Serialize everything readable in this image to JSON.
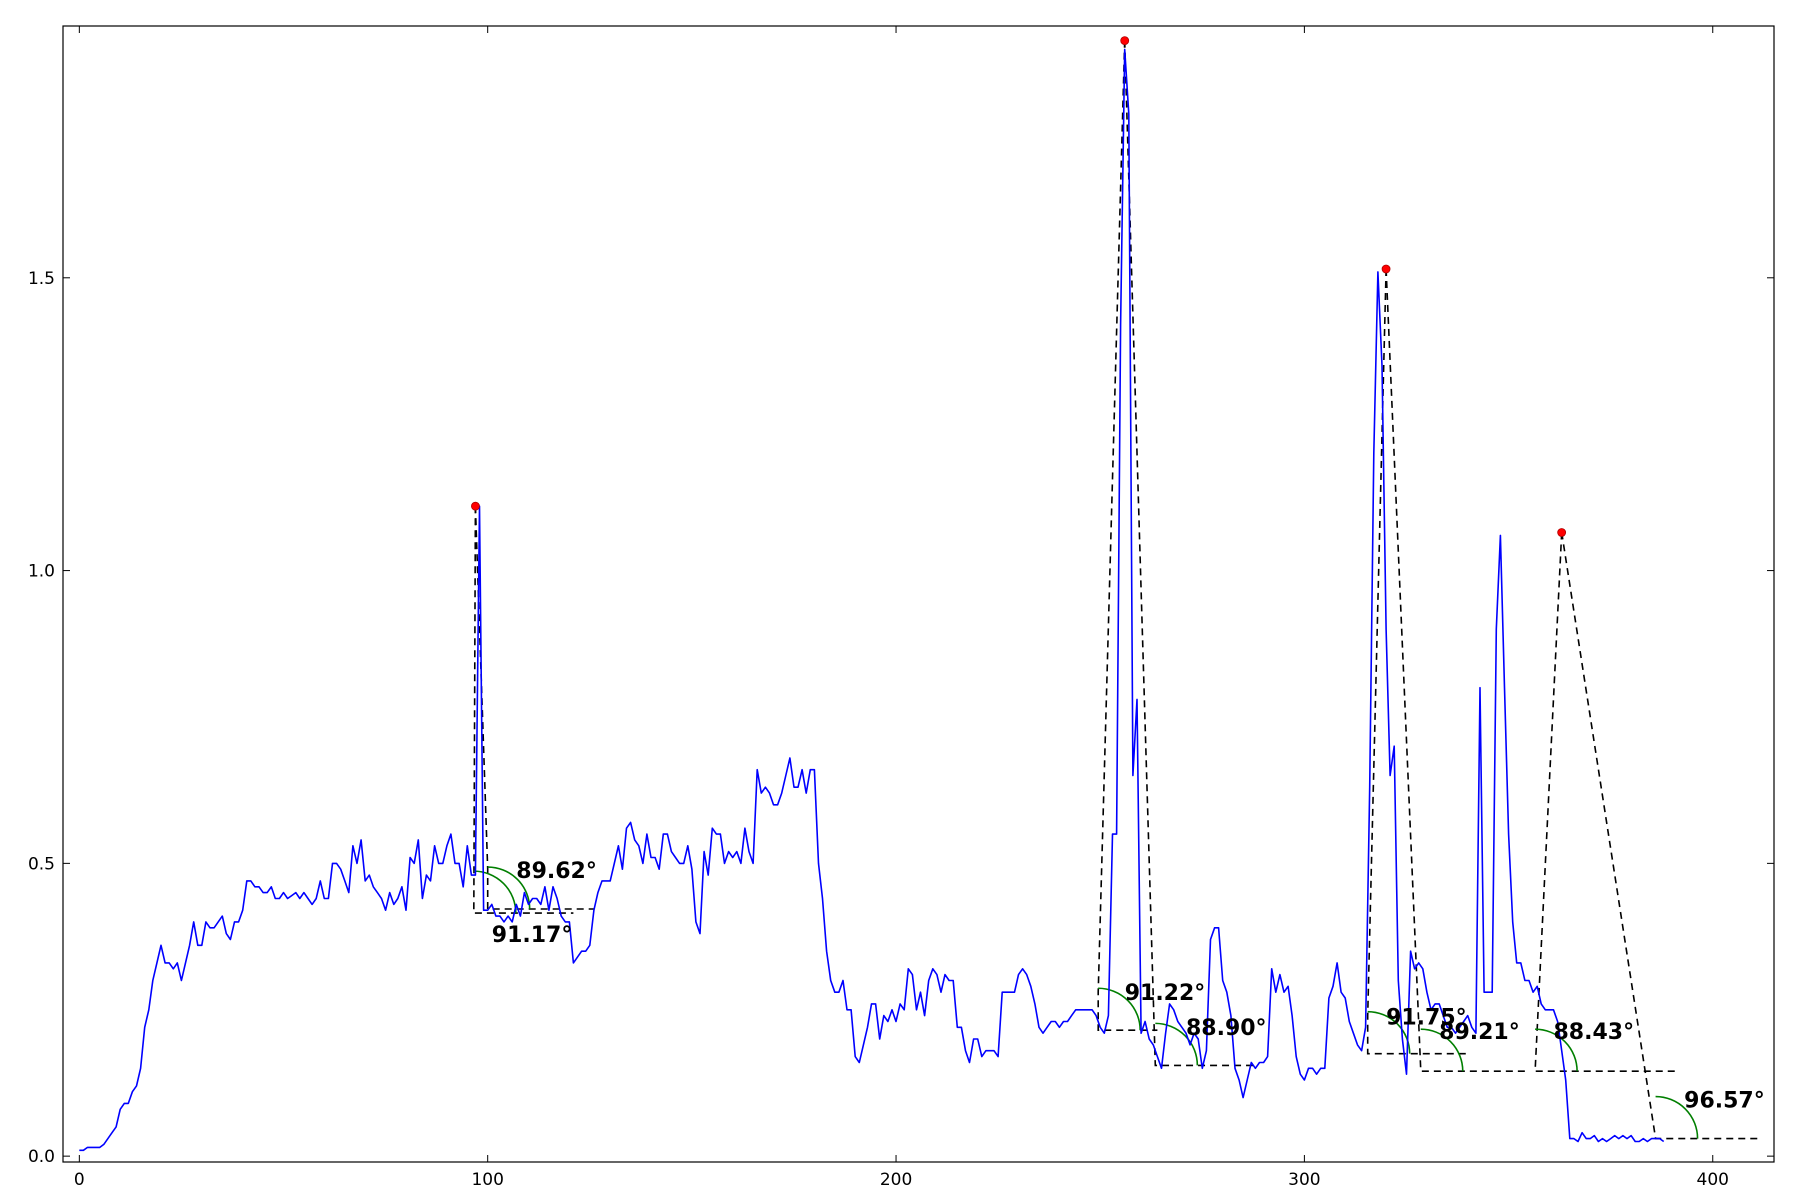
{
  "chart_data": {
    "type": "line",
    "title": "",
    "xlabel": "",
    "ylabel": "",
    "xlim": [
      -4,
      415
    ],
    "ylim": [
      -0.01,
      1.93
    ],
    "grid": false,
    "legend": "none",
    "x_ticks": [
      0,
      100,
      200,
      300,
      400
    ],
    "x_tick_labels": [
      "0",
      "100",
      "200",
      "300",
      "400"
    ],
    "y_ticks": [
      0.0,
      0.5,
      1.0,
      1.5
    ],
    "y_tick_labels": [
      "0.0",
      "0.5",
      "1.0",
      "1.5"
    ],
    "colors": {
      "series": "#0000ff",
      "peaks": "#ff0000",
      "guides": "#000000",
      "arcs": "#007f00"
    },
    "series": [
      {
        "values_note": "y values at x = 0,1,2,...",
        "x_start": 0,
        "x_step": 1,
        "y": [
          0.01,
          0.01,
          0.015,
          0.015,
          0.015,
          0.015,
          0.02,
          0.03,
          0.04,
          0.05,
          0.08,
          0.09,
          0.09,
          0.11,
          0.12,
          0.15,
          0.22,
          0.25,
          0.3,
          0.33,
          0.36,
          0.33,
          0.33,
          0.32,
          0.33,
          0.3,
          0.33,
          0.36,
          0.4,
          0.36,
          0.36,
          0.4,
          0.39,
          0.39,
          0.4,
          0.41,
          0.38,
          0.37,
          0.4,
          0.4,
          0.42,
          0.47,
          0.47,
          0.46,
          0.46,
          0.45,
          0.45,
          0.46,
          0.44,
          0.44,
          0.45,
          0.44,
          0.445,
          0.45,
          0.44,
          0.45,
          0.44,
          0.43,
          0.44,
          0.47,
          0.44,
          0.44,
          0.5,
          0.5,
          0.49,
          0.47,
          0.45,
          0.53,
          0.5,
          0.54,
          0.47,
          0.48,
          0.46,
          0.45,
          0.44,
          0.42,
          0.45,
          0.43,
          0.44,
          0.46,
          0.42,
          0.51,
          0.5,
          0.54,
          0.44,
          0.48,
          0.47,
          0.53,
          0.5,
          0.5,
          0.53,
          0.55,
          0.5,
          0.5,
          0.46,
          0.53,
          0.48,
          0.48,
          1.11,
          0.42,
          0.42,
          0.43,
          0.41,
          0.41,
          0.4,
          0.41,
          0.4,
          0.43,
          0.41,
          0.45,
          0.43,
          0.44,
          0.44,
          0.43,
          0.46,
          0.42,
          0.46,
          0.44,
          0.41,
          0.4,
          0.4,
          0.33,
          0.34,
          0.35,
          0.35,
          0.36,
          0.42,
          0.45,
          0.47,
          0.47,
          0.47,
          0.5,
          0.53,
          0.49,
          0.56,
          0.57,
          0.54,
          0.53,
          0.5,
          0.55,
          0.51,
          0.51,
          0.49,
          0.55,
          0.55,
          0.52,
          0.51,
          0.5,
          0.5,
          0.53,
          0.49,
          0.4,
          0.38,
          0.52,
          0.48,
          0.56,
          0.55,
          0.55,
          0.5,
          0.52,
          0.51,
          0.52,
          0.5,
          0.56,
          0.52,
          0.5,
          0.66,
          0.62,
          0.63,
          0.62,
          0.6,
          0.6,
          0.62,
          0.65,
          0.68,
          0.63,
          0.63,
          0.66,
          0.62,
          0.66,
          0.66,
          0.5,
          0.44,
          0.35,
          0.3,
          0.28,
          0.28,
          0.3,
          0.25,
          0.25,
          0.17,
          0.16,
          0.19,
          0.22,
          0.26,
          0.26,
          0.2,
          0.24,
          0.23,
          0.25,
          0.23,
          0.26,
          0.25,
          0.32,
          0.31,
          0.25,
          0.28,
          0.24,
          0.3,
          0.32,
          0.31,
          0.28,
          0.31,
          0.3,
          0.3,
          0.22,
          0.22,
          0.18,
          0.16,
          0.2,
          0.2,
          0.17,
          0.18,
          0.18,
          0.18,
          0.17,
          0.28,
          0.28,
          0.28,
          0.28,
          0.31,
          0.32,
          0.31,
          0.29,
          0.26,
          0.22,
          0.21,
          0.22,
          0.23,
          0.23,
          0.22,
          0.23,
          0.23,
          0.24,
          0.25,
          0.25,
          0.25,
          0.25,
          0.25,
          0.24,
          0.22,
          0.21,
          0.24,
          0.55,
          0.55,
          1.42,
          1.89,
          1.78,
          0.65,
          0.78,
          0.21,
          0.23,
          0.2,
          0.19,
          0.17,
          0.15,
          0.21,
          0.26,
          0.25,
          0.23,
          0.22,
          0.21,
          0.19,
          0.21,
          0.2,
          0.15,
          0.18,
          0.37,
          0.39,
          0.39,
          0.3,
          0.28,
          0.24,
          0.15,
          0.13,
          0.1,
          0.13,
          0.16,
          0.15,
          0.16,
          0.16,
          0.17,
          0.32,
          0.28,
          0.31,
          0.28,
          0.29,
          0.24,
          0.17,
          0.14,
          0.13,
          0.15,
          0.15,
          0.14,
          0.15,
          0.15,
          0.27,
          0.29,
          0.33,
          0.28,
          0.27,
          0.23,
          0.21,
          0.19,
          0.18,
          0.22,
          0.63,
          1.2,
          1.51,
          1.35,
          0.9,
          0.65,
          0.7,
          0.3,
          0.2,
          0.14,
          0.35,
          0.32,
          0.33,
          0.32,
          0.28,
          0.25,
          0.26,
          0.26,
          0.24,
          0.22,
          0.22,
          0.21,
          0.22,
          0.23,
          0.24,
          0.22,
          0.21,
          0.8,
          0.28,
          0.28,
          0.28,
          0.9,
          1.06,
          0.8,
          0.55,
          0.4,
          0.33,
          0.33,
          0.3,
          0.3,
          0.28,
          0.29,
          0.26,
          0.25,
          0.25,
          0.25,
          0.23,
          0.18,
          0.13,
          0.03,
          0.03,
          0.025,
          0.04,
          0.03,
          0.03,
          0.035,
          0.025,
          0.03,
          0.025,
          0.03,
          0.035,
          0.03,
          0.035,
          0.03,
          0.035,
          0.025,
          0.025,
          0.03,
          0.025,
          0.03,
          0.03,
          0.03,
          0.025
        ]
      }
    ],
    "peaks": [
      {
        "x": 97,
        "y": 1.11
      },
      {
        "x": 256,
        "y": 1.905
      },
      {
        "x": 320,
        "y": 1.515
      },
      {
        "x": 363,
        "y": 1.065
      }
    ],
    "guide_lines": [
      {
        "points": [
          [
            97,
            1.11
          ],
          [
            96.6,
            0.415
          ],
          [
            121,
            0.415
          ]
        ]
      },
      {
        "points": [
          [
            97,
            1.11
          ],
          [
            100,
            0.49
          ],
          [
            100,
            0.422
          ],
          [
            126,
            0.422
          ]
        ]
      },
      {
        "points": [
          [
            256,
            1.905
          ],
          [
            249.5,
            0.28
          ],
          [
            249.5,
            0.215
          ],
          [
            264,
            0.215
          ]
        ]
      },
      {
        "points": [
          [
            256,
            1.905
          ],
          [
            263.5,
            0.155
          ],
          [
            288,
            0.155
          ]
        ]
      },
      {
        "points": [
          [
            320,
            1.515
          ],
          [
            315.5,
            0.24
          ],
          [
            315.5,
            0.175
          ],
          [
            340,
            0.175
          ]
        ]
      },
      {
        "points": [
          [
            320,
            1.515
          ],
          [
            328.5,
            0.145
          ],
          [
            355,
            0.145
          ]
        ]
      },
      {
        "points": [
          [
            363,
            1.065
          ],
          [
            356.5,
            0.145
          ],
          [
            391,
            0.145
          ]
        ]
      },
      {
        "points": [
          [
            363,
            1.065
          ],
          [
            386,
            0.03
          ],
          [
            411,
            0.03
          ]
        ]
      }
    ],
    "angle_arcs": [
      {
        "cx": 100,
        "cy": 0.422,
        "label": "89.62°",
        "label_x": 107,
        "label_y": 0.475
      },
      {
        "cx": 96.6,
        "cy": 0.415,
        "label": "91.17°",
        "label_x": 101,
        "label_y": 0.366
      },
      {
        "cx": 249.5,
        "cy": 0.215,
        "label": "91.22°",
        "label_x": 256,
        "label_y": 0.267
      },
      {
        "cx": 263.5,
        "cy": 0.155,
        "label": "88.90°",
        "label_x": 271,
        "label_y": 0.207
      },
      {
        "cx": 315.5,
        "cy": 0.175,
        "label": "91.75°",
        "label_x": 320,
        "label_y": 0.225
      },
      {
        "cx": 328.5,
        "cy": 0.145,
        "label": "89.21°",
        "label_x": 333,
        "label_y": 0.2
      },
      {
        "cx": 356.5,
        "cy": 0.145,
        "label": "88.43°",
        "label_x": 361,
        "label_y": 0.2
      },
      {
        "cx": 386,
        "cy": 0.03,
        "label": "96.57°",
        "label_x": 393,
        "label_y": 0.083
      }
    ]
  }
}
